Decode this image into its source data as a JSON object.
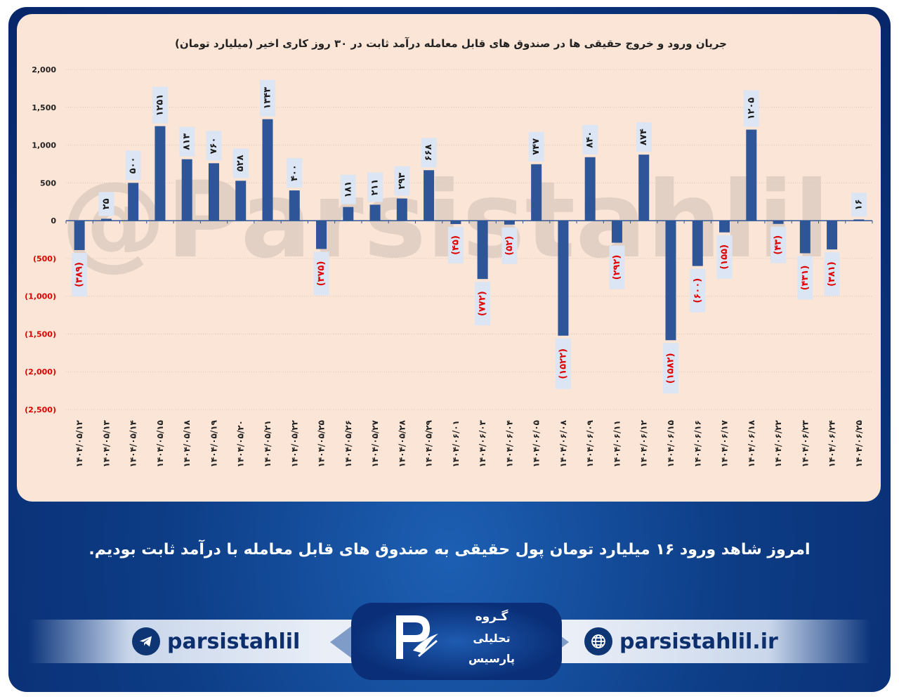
{
  "chart_data": {
    "type": "bar",
    "title": "جریان ورود و خروج حقیقی ها در صندوق های قابل معامله درآمد ثابت در ۳۰ روز کاری اخیر (میلیارد تومان)",
    "xlabel": "",
    "ylabel": "",
    "ylim": [
      -2500,
      2000
    ],
    "ytick_values": [
      2000,
      1500,
      1000,
      500,
      0,
      -500,
      -1000,
      -1500,
      -2000,
      -2500
    ],
    "ytick_labels": [
      "2,000",
      "1,500",
      "1,000",
      "500",
      "0",
      "(500)",
      "(1,000)",
      "(1,500)",
      "(2,000)",
      "(2,500)"
    ],
    "grid": true,
    "legend": "none",
    "categories": [
      "۱۴۰۴/۰۵/۱۲",
      "۱۴۰۴/۰۵/۱۳",
      "۱۴۰۴/۰۵/۱۴",
      "۱۴۰۴/۰۵/۱۵",
      "۱۴۰۴/۰۵/۱۸",
      "۱۴۰۴/۰۵/۱۹",
      "۱۴۰۴/۰۵/۲۰",
      "۱۴۰۴/۰۵/۲۱",
      "۱۴۰۴/۰۵/۲۲",
      "۱۴۰۴/۰۵/۲۵",
      "۱۴۰۴/۰۵/۲۶",
      "۱۴۰۴/۰۵/۲۷",
      "۱۴۰۴/۰۵/۲۸",
      "۱۴۰۴/۰۵/۲۹",
      "۱۴۰۴/۰۶/۰۱",
      "۱۴۰۴/۰۶/۰۳",
      "۱۴۰۴/۰۶/۰۴",
      "۱۴۰۴/۰۶/۰۵",
      "۱۴۰۴/۰۶/۰۸",
      "۱۴۰۴/۰۶/۰۹",
      "۱۴۰۴/۰۶/۱۱",
      "۱۴۰۴/۰۶/۱۲",
      "۱۴۰۴/۰۶/۱۵",
      "۱۴۰۴/۰۶/۱۶",
      "۱۴۰۴/۰۶/۱۷",
      "۱۴۰۴/۰۶/۱۸",
      "۱۴۰۴/۰۶/۲۲",
      "۱۴۰۴/۰۶/۲۳",
      "۱۴۰۴/۰۶/۲۴",
      "۱۴۰۴/۰۶/۲۵"
    ],
    "values": [
      -389,
      25,
      500,
      1251,
      813,
      760,
      528,
      1343,
      400,
      -375,
      181,
      211,
      293,
      668,
      -45,
      -772,
      -52,
      747,
      -1522,
      840,
      -292,
      874,
      -1582,
      -600,
      -155,
      1205,
      -43,
      -431,
      -381,
      16
    ],
    "data_labels": [
      "(۳۸۹)",
      "۲۵",
      "۵۰۰",
      "۱۲۵۱",
      "۸۱۳",
      "۷۶۰",
      "۵۲۸",
      "۱۳۴۳",
      "۴۰۰",
      "(۳۷۵)",
      "۱۸۱",
      "۲۱۱",
      "۲۹۳",
      "۶۶۸",
      "(۴۵)",
      "(۷۷۲)",
      "(۵۲)",
      "۷۴۷",
      "(۱۵۲۲)",
      "۸۴۰",
      "(۲۹۲)",
      "۸۷۴",
      "(۱۵۸۲)",
      "(۶۰۰)",
      "(۱۵۵)",
      "۱۲۰۵",
      "(۴۳)",
      "(۴۳۱)",
      "(۳۸۱)",
      "۱۶"
    ],
    "watermark": "@Parsistahlil"
  },
  "colors": {
    "bar": "#2e5597",
    "positive_label": "#1a1a1a",
    "negative_label": "#e00000",
    "label_box": "#dbe5f3",
    "chart_background": "#fbe5d6",
    "page_background": "#0d3d86",
    "watermark": "#e3d0c4"
  },
  "message": "امروز شاهد ورود ۱۶ میلیارد تومان پول حقیقی به صندوق های قابل معامله با درآمد ثابت بودیم.",
  "footer": {
    "telegram_handle": "parsistahlil",
    "telegram_icon": "telegram-icon",
    "website": "parsistahlil.ir",
    "website_icon": "globe-icon",
    "logo_line1": "گـروه",
    "logo_line2": "تحلیلی",
    "logo_line3": "پارسیس"
  }
}
